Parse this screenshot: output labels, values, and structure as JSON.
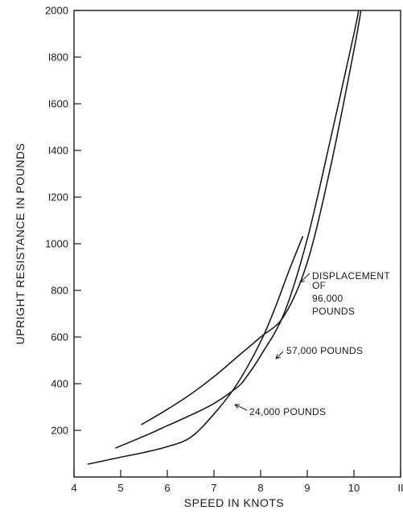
{
  "chart_data": {
    "type": "line",
    "xlabel": "SPEED IN KNOTS",
    "ylabel": "UPRIGHT RESISTANCE IN POUNDS",
    "xlim": [
      4,
      11
    ],
    "ylim": [
      0,
      2000
    ],
    "x_ticks": [
      4,
      5,
      6,
      7,
      8,
      9,
      10,
      11
    ],
    "y_ticks": [
      200,
      400,
      600,
      800,
      1000,
      1200,
      1400,
      1600,
      1800,
      2000
    ],
    "y_tick_labels": [
      "200",
      "400",
      "600",
      "800",
      "1000",
      "I200",
      "I400",
      "I600",
      "I800",
      "2000"
    ],
    "x_tick_labels": [
      "4",
      "5",
      "6",
      "7",
      "8",
      "9",
      "10",
      "II"
    ],
    "grid": false,
    "series": [
      {
        "name": "24,000 POUNDS",
        "x": [
          4.3,
          5,
          5.5,
          6,
          6.5,
          7,
          7.5,
          8,
          8.3,
          8.6,
          8.9
        ],
        "y": [
          55,
          85,
          105,
          130,
          170,
          270,
          400,
          580,
          720,
          880,
          1030
        ]
      },
      {
        "name": "57,000 POUNDS",
        "x": [
          4.9,
          5.5,
          6,
          6.5,
          7,
          7.5,
          7.7,
          8,
          8.5,
          9,
          9.5,
          10,
          10.1
        ],
        "y": [
          125,
          175,
          220,
          265,
          315,
          385,
          430,
          520,
          700,
          1020,
          1450,
          1900,
          2000
        ]
      },
      {
        "name": "DISPLACEMENT OF 96,000 POUNDS",
        "x": [
          5.45,
          6,
          6.5,
          7,
          7.5,
          8,
          8.5,
          9,
          9.5,
          10,
          10.15
        ],
        "y": [
          225,
          290,
          355,
          430,
          515,
          600,
          690,
          920,
          1330,
          1830,
          2000
        ]
      }
    ],
    "annotations": [
      {
        "lines": [
          "DISPLACEMENT",
          "OF",
          "96,000",
          "POUNDS"
        ]
      },
      {
        "lines": [
          "57,000 POUNDS"
        ]
      },
      {
        "lines": [
          "24,000 POUNDS"
        ]
      }
    ]
  }
}
